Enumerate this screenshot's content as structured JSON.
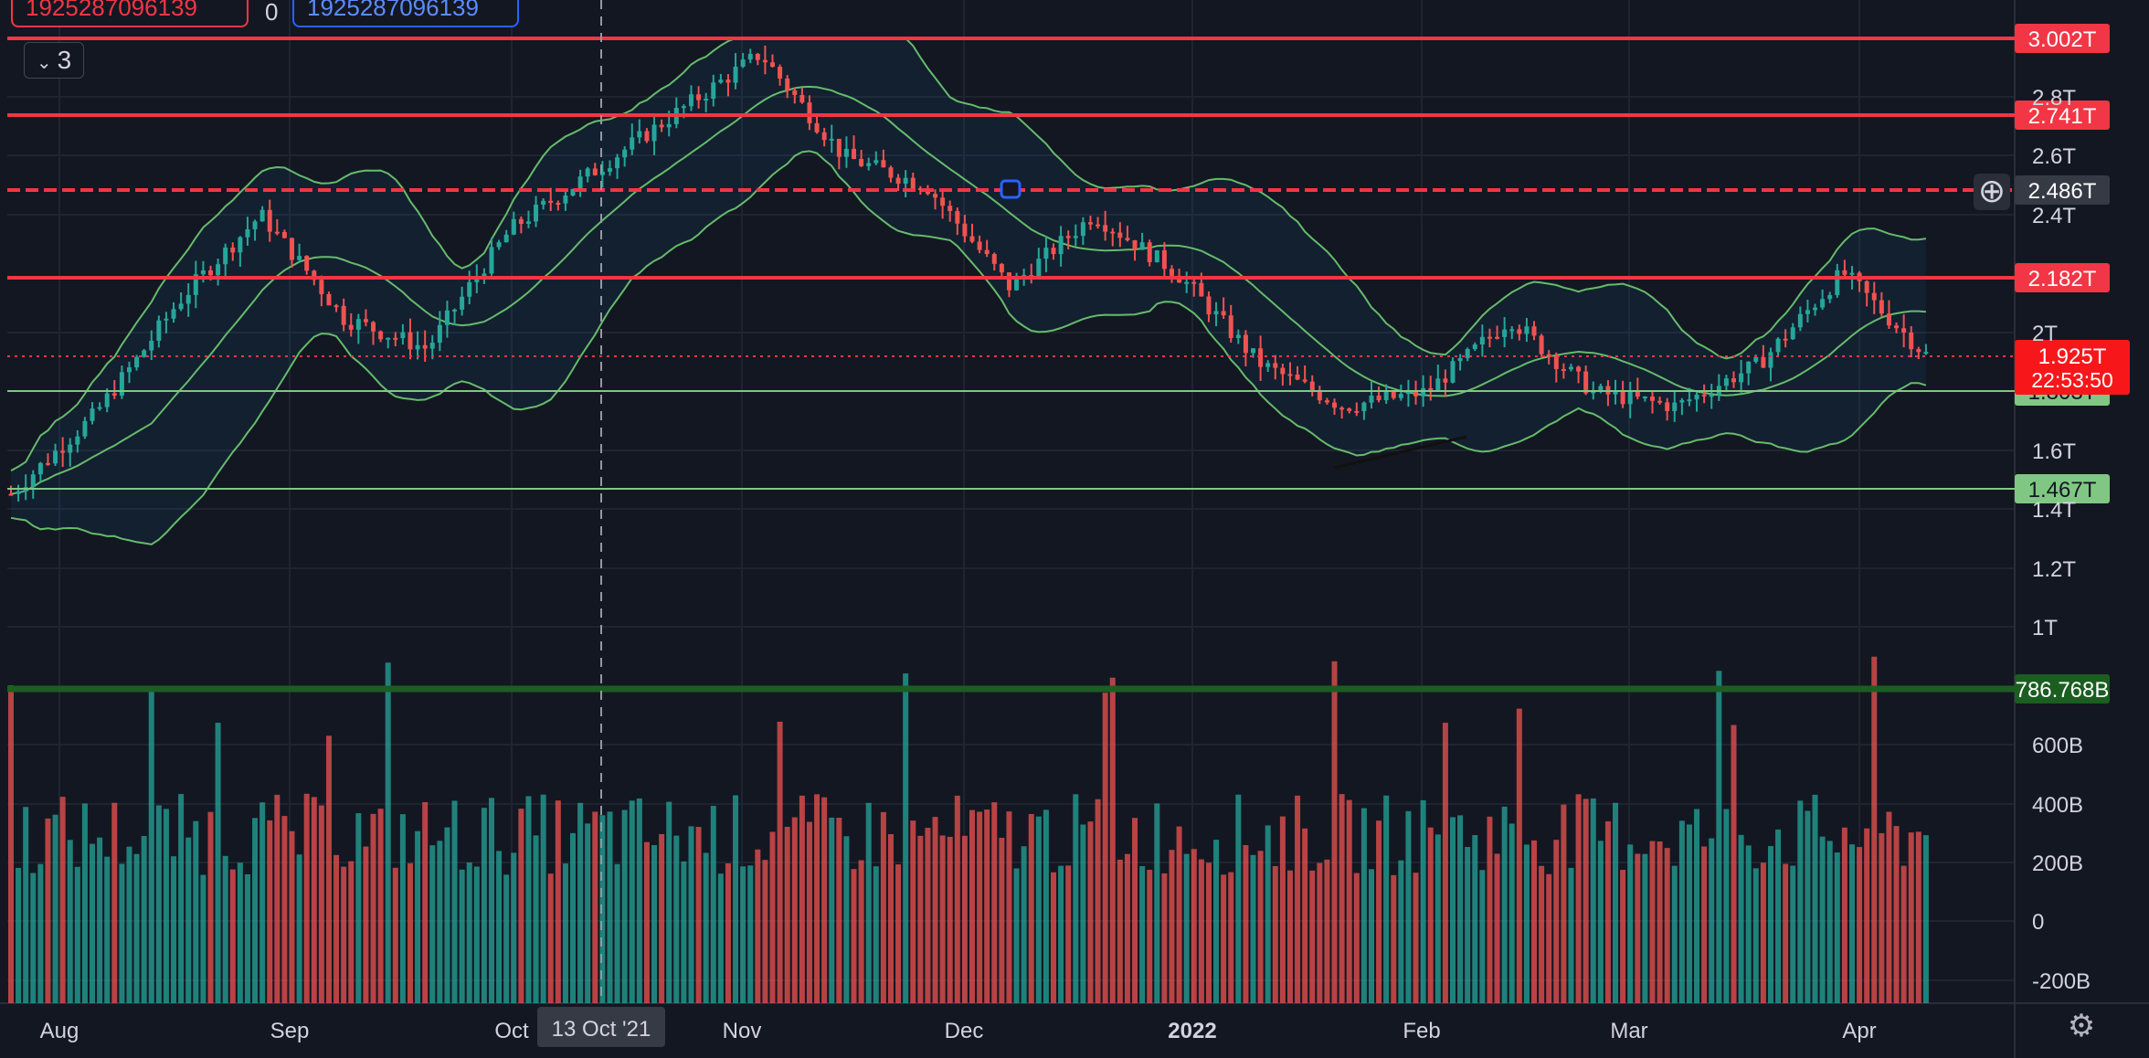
{
  "header": {
    "value_red": "1925287096139",
    "value_zero": "0",
    "value_blue": "1925287096139",
    "collapse_count": "3"
  },
  "colors": {
    "background": "#131722",
    "up": "#26a69a",
    "down": "#ef5350",
    "bollinger": "#66bb6a",
    "resistance": "#f23645",
    "support": "#81c784",
    "support_strong": "#1b5e20"
  },
  "price_axis": {
    "ticks": [
      "2.8T",
      "2.6T",
      "2.4T",
      "2T",
      "1.6T",
      "1.4T",
      "1.2T",
      "1T"
    ],
    "volume_ticks": [
      "600B",
      "400B",
      "200B",
      "0",
      "-200B"
    ]
  },
  "time_axis": {
    "labels": [
      "Aug",
      "Sep",
      "Oct",
      "Nov",
      "Dec",
      "2022",
      "Feb",
      "Mar",
      "Apr"
    ],
    "crosshair_label": "13 Oct '21"
  },
  "levels": {
    "resistance": [
      {
        "value": 3.002,
        "label": "3.002T"
      },
      {
        "value": 2.741,
        "label": "2.741T"
      },
      {
        "value": 2.486,
        "label": "2.486T",
        "dashed": true
      },
      {
        "value": 2.182,
        "label": "2.182T"
      }
    ],
    "support": [
      {
        "value": 1.803,
        "label": "1.803T"
      },
      {
        "value": 1.467,
        "label": "1.467T"
      },
      {
        "value": 0.787,
        "label": "786.768B",
        "strong": true
      }
    ],
    "current_price": {
      "value": 1.925,
      "label": "1.925T",
      "countdown": "22:53:50"
    }
  },
  "controls": {
    "add_icon": "plus-circle-icon",
    "settings_icon": "gear-icon"
  },
  "chart_data": {
    "type": "candlestick",
    "price_unit": "T",
    "ylim": [
      0.85,
      3.05
    ],
    "close_path": [
      [
        "Aug",
        1.45
      ],
      [
        "Aug",
        1.72
      ],
      [
        "Sep",
        2.1
      ],
      [
        "Sep",
        2.4
      ],
      [
        "Sep",
        2.05
      ],
      [
        "Oct",
        1.95
      ],
      [
        "Oct",
        2.35
      ],
      [
        "Oct",
        2.55
      ],
      [
        "Nov",
        2.75
      ],
      [
        "Nov",
        2.95
      ],
      [
        "Nov",
        2.6
      ],
      [
        "Dec",
        2.5
      ],
      [
        "Dec",
        2.15
      ],
      [
        "Dec",
        2.4
      ],
      [
        "2022",
        2.2
      ],
      [
        "2022",
        1.9
      ],
      [
        "2022",
        1.75
      ],
      [
        "Feb",
        1.8
      ],
      [
        "Feb",
        2.05
      ],
      [
        "Mar",
        1.8
      ],
      [
        "Mar",
        1.75
      ],
      [
        "Mar",
        1.9
      ],
      [
        "Apr",
        2.2
      ],
      [
        "Apr",
        1.93
      ]
    ],
    "grid": true
  }
}
